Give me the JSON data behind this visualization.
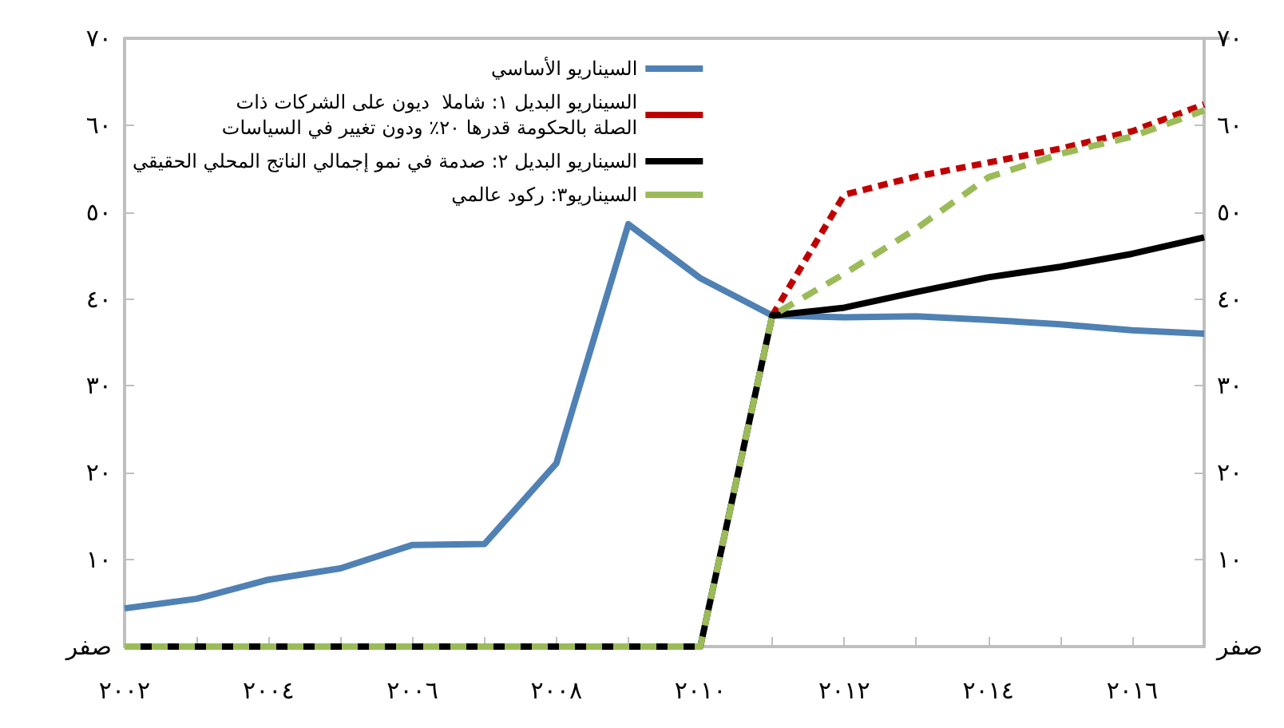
{
  "chart_data": {
    "type": "line",
    "categories": [
      "٢٠٠٢",
      null,
      "٢٠٠٤",
      null,
      "٢٠٠٦",
      null,
      "٢٠٠٨",
      null,
      "٢٠١٠",
      null,
      "٢٠١٢",
      null,
      "٢٠١٤",
      null,
      "٢٠١٦",
      null
    ],
    "series": [
      {
        "name": "السيناريو الأساسي",
        "color": "#4f81b4",
        "line_style": "solid",
        "values": [
          4.4,
          5.5,
          7.7,
          9.0,
          11.7,
          11.8,
          21.1,
          48.6,
          42.4,
          38.1,
          37.9,
          38.0,
          37.6,
          37.1,
          36.4,
          36.0
        ]
      },
      {
        "name": "السيناريو البديل ١: شاملا  ديون على الشركات ذات\nالصلة بالحكومة قدرها ٢٠٪ ودون تغيير في السياسات",
        "color": "#c00000",
        "line_style": "dotted",
        "values": [
          null,
          null,
          null,
          null,
          null,
          null,
          null,
          null,
          null,
          38.1,
          52.0,
          54.1,
          55.7,
          57.3,
          59.3,
          62.4
        ]
      },
      {
        "name": "السيناريو البديل ٢: صدمة في نمو إجمالي الناتج المحلي الحقيقي",
        "color": "#000000",
        "line_style": "solid",
        "values": [
          0,
          0,
          0,
          0,
          0,
          0,
          0,
          0,
          0,
          38.1,
          39.0,
          40.8,
          42.5,
          43.7,
          45.2,
          47.1
        ]
      },
      {
        "name": "السيناريو٣: ركود عالمي",
        "color": "#9bbb59",
        "line_style": "dashed",
        "values": [
          0,
          0,
          0,
          0,
          0,
          0,
          0,
          0,
          0,
          38.1,
          42.9,
          48.1,
          54.0,
          56.7,
          58.7,
          61.7
        ]
      }
    ],
    "ylim": [
      0,
      70
    ],
    "yticks": [
      {
        "value": 0,
        "label": "صفر"
      },
      {
        "value": 10,
        "label": "١٠"
      },
      {
        "value": 20,
        "label": "٢٠"
      },
      {
        "value": 30,
        "label": "٣٠"
      },
      {
        "value": 40,
        "label": "٤٠"
      },
      {
        "value": 50,
        "label": "٥٠"
      },
      {
        "value": 60,
        "label": "٦٠"
      },
      {
        "value": 70,
        "label": "٧٠"
      }
    ],
    "y2lim": [
      0,
      70
    ],
    "y2ticks": [
      {
        "value": 0,
        "label": "صفر"
      },
      {
        "value": 10,
        "label": "١٠"
      },
      {
        "value": 20,
        "label": "٢٠"
      },
      {
        "value": 30,
        "label": "٣٠"
      },
      {
        "value": 40,
        "label": "٤٠"
      },
      {
        "value": 50,
        "label": "٥٠"
      },
      {
        "value": 60,
        "label": "٦٠"
      },
      {
        "value": 70,
        "label": "٧٠"
      }
    ],
    "grid": false,
    "legend": "top left"
  }
}
